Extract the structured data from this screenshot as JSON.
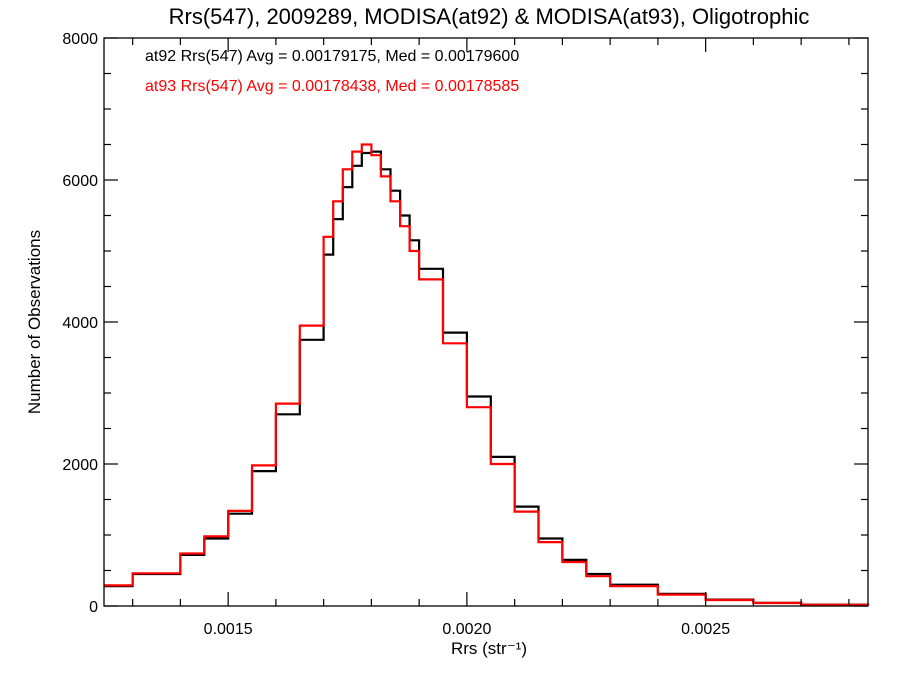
{
  "chart_data": {
    "type": "line",
    "step": true,
    "title": "Rrs(547), 2009289, MODISA(at92) & MODISA(at93), Oligotrophic",
    "xlabel": "Rrs (str⁻¹)",
    "ylabel": "Number of Observations",
    "xlim": [
      0.00124,
      0.00284
    ],
    "ylim": [
      0,
      8000
    ],
    "x_ticks": [
      0.0015,
      0.002,
      0.0025
    ],
    "x_tick_labels": [
      "0.0015",
      "0.0020",
      "0.0025"
    ],
    "y_ticks": [
      0,
      2000,
      4000,
      6000,
      8000
    ],
    "y_tick_labels": [
      "0",
      "2000",
      "4000",
      "6000",
      "8000"
    ],
    "legend": [
      {
        "text": "at92 Rrs(547) Avg = 0.00179175, Med = 0.00179600",
        "color": "#000000"
      },
      {
        "text": "at93 Rrs(547) Avg = 0.00178438, Med = 0.00178585",
        "color": "#ff0000"
      }
    ],
    "legend_position": "top-left",
    "series": [
      {
        "color": "#000000",
        "x": [
          0.00124,
          0.0013,
          0.0014,
          0.00145,
          0.0015,
          0.00155,
          0.0016,
          0.00165,
          0.0017,
          0.00172,
          0.00174,
          0.00176,
          0.00178,
          0.0018,
          0.00182,
          0.00184,
          0.00186,
          0.00188,
          0.0019,
          0.00195,
          0.002,
          0.00205,
          0.0021,
          0.00215,
          0.0022,
          0.00225,
          0.0023,
          0.0024,
          0.0025,
          0.0026,
          0.0027,
          0.00284
        ],
        "y": [
          280,
          450,
          720,
          950,
          1300,
          1900,
          2700,
          3750,
          4950,
          5450,
          5900,
          6200,
          6380,
          6400,
          6150,
          5850,
          5500,
          5150,
          4750,
          3850,
          2950,
          2100,
          1400,
          950,
          650,
          450,
          300,
          170,
          90,
          45,
          20,
          10
        ]
      },
      {
        "color": "#ff0000",
        "x": [
          0.00124,
          0.0013,
          0.0014,
          0.00145,
          0.0015,
          0.00155,
          0.0016,
          0.00165,
          0.0017,
          0.00172,
          0.00174,
          0.00176,
          0.00178,
          0.0018,
          0.00182,
          0.00184,
          0.00186,
          0.00188,
          0.0019,
          0.00195,
          0.002,
          0.00205,
          0.0021,
          0.00215,
          0.0022,
          0.00225,
          0.0023,
          0.0024,
          0.0025,
          0.0026,
          0.0027,
          0.00284
        ],
        "y": [
          290,
          460,
          740,
          980,
          1340,
          1980,
          2850,
          3950,
          5200,
          5700,
          6150,
          6400,
          6500,
          6350,
          6050,
          5700,
          5350,
          5000,
          4600,
          3700,
          2800,
          2000,
          1330,
          900,
          620,
          420,
          280,
          160,
          85,
          42,
          18,
          8
        ]
      }
    ]
  }
}
